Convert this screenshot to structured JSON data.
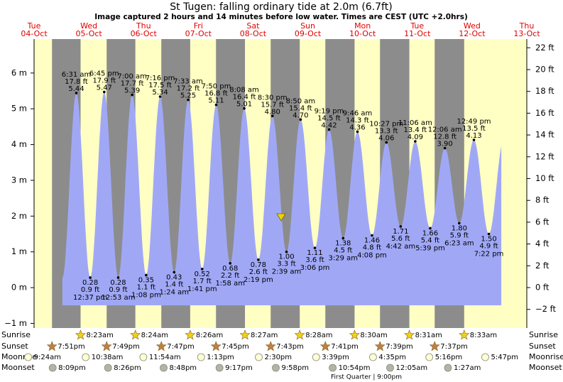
{
  "chart_data": {
    "type": "tide",
    "title": "St Tugen: falling  ordinary tide at 2.0m (6.7ft)",
    "subtitle": "Image captured 2 hours and 14 minutes before low water. Times are CEST (UTC +2.0hrs)",
    "days": [
      {
        "weekday": "Tue",
        "date": "04-Oct"
      },
      {
        "weekday": "Wed",
        "date": "05-Oct"
      },
      {
        "weekday": "Thu",
        "date": "06-Oct"
      },
      {
        "weekday": "Fri",
        "date": "07-Oct"
      },
      {
        "weekday": "Sat",
        "date": "08-Oct"
      },
      {
        "weekday": "Sun",
        "date": "09-Oct"
      },
      {
        "weekday": "Mon",
        "date": "10-Oct"
      },
      {
        "weekday": "Tue",
        "date": "11-Oct"
      },
      {
        "weekday": "Wed",
        "date": "12-Oct"
      },
      {
        "weekday": "Thu",
        "date": "13-Oct"
      }
    ],
    "ylim": [
      -1.13,
      6.95
    ],
    "yticks": [
      {
        "value": -1,
        "label": "−1 m"
      },
      {
        "value": 0,
        "label": "0 m"
      },
      {
        "value": 1,
        "label": "1 m"
      },
      {
        "value": 2,
        "label": "2 m"
      },
      {
        "value": 3,
        "label": "3 m"
      },
      {
        "value": 4,
        "label": "4 m"
      },
      {
        "value": 5,
        "label": "5 m"
      },
      {
        "value": 6,
        "label": "6 m"
      }
    ],
    "y2lim": [
      -3.71,
      22.8
    ],
    "y2ticks": [
      {
        "value": -2,
        "label": "−2 ft"
      },
      {
        "value": 0,
        "label": "0 ft"
      },
      {
        "value": 2,
        "label": "2 ft"
      },
      {
        "value": 4,
        "label": "4 ft"
      },
      {
        "value": 6,
        "label": "6 ft"
      },
      {
        "value": 8,
        "label": "8 ft"
      },
      {
        "value": 10,
        "label": "10 ft"
      },
      {
        "value": 12,
        "label": "12 ft"
      },
      {
        "value": 14,
        "label": "14 ft"
      },
      {
        "value": 16,
        "label": "16 ft"
      },
      {
        "value": 18,
        "label": "18 ft"
      },
      {
        "value": 20,
        "label": "20 ft"
      },
      {
        "value": 22,
        "label": "22 ft"
      }
    ],
    "color": "#a0a8f6",
    "extremes": [
      {
        "date": "05-Oct",
        "time": "6:31 am",
        "height": 5.44,
        "height_label": "5.44",
        "feet": "17.8 ft"
      },
      {
        "date": "05-Oct",
        "time": "12:37 pm",
        "height": 0.28,
        "height_label": "0.28",
        "feet": "0.9 ft"
      },
      {
        "date": "05-Oct",
        "time": "6:45 pm",
        "height": 5.47,
        "height_label": "5.47",
        "feet": "17.9 ft"
      },
      {
        "date": "06-Oct",
        "time": "12:53 am",
        "height": 0.28,
        "height_label": "0.28",
        "feet": "0.9 ft"
      },
      {
        "date": "06-Oct",
        "time": "7:00 am",
        "height": 5.39,
        "height_label": "5.39",
        "feet": "17.7 ft"
      },
      {
        "date": "06-Oct",
        "time": "1:08 pm",
        "height": 0.35,
        "height_label": "0.35",
        "feet": "1.1 ft"
      },
      {
        "date": "06-Oct",
        "time": "7:16 pm",
        "height": 5.34,
        "height_label": "5.34",
        "feet": "17.5 ft"
      },
      {
        "date": "07-Oct",
        "time": "1:24 am",
        "height": 0.43,
        "height_label": "0.43",
        "feet": "1.4 ft"
      },
      {
        "date": "07-Oct",
        "time": "7:33 am",
        "height": 5.25,
        "height_label": "5.25",
        "feet": "17.2 ft"
      },
      {
        "date": "07-Oct",
        "time": "1:41 pm",
        "height": 0.52,
        "height_label": "0.52",
        "feet": "1.7 ft"
      },
      {
        "date": "07-Oct",
        "time": "7:50 pm",
        "height": 5.11,
        "height_label": "5.11",
        "feet": "16.8 ft"
      },
      {
        "date": "08-Oct",
        "time": "1:58 am",
        "height": 0.68,
        "height_label": "0.68",
        "feet": "2.2 ft"
      },
      {
        "date": "08-Oct",
        "time": "8:08 am",
        "height": 5.01,
        "height_label": "5.01",
        "feet": "16.4 ft"
      },
      {
        "date": "08-Oct",
        "time": "2:19 pm",
        "height": 0.78,
        "height_label": "0.78",
        "feet": "2.6 ft"
      },
      {
        "date": "08-Oct",
        "time": "8:30 pm",
        "height": 4.8,
        "height_label": "4.80",
        "feet": "15.7 ft"
      },
      {
        "date": "09-Oct",
        "time": "2:39 am",
        "height": 1.0,
        "height_label": "1.00",
        "feet": "3.3 ft"
      },
      {
        "date": "09-Oct",
        "time": "8:50 am",
        "height": 4.7,
        "height_label": "4.70",
        "feet": "15.4 ft"
      },
      {
        "date": "09-Oct",
        "time": "3:06 pm",
        "height": 1.11,
        "height_label": "1.11",
        "feet": "3.6 ft"
      },
      {
        "date": "09-Oct",
        "time": "9:19 pm",
        "height": 4.42,
        "height_label": "4.42",
        "feet": "14.5 ft"
      },
      {
        "date": "10-Oct",
        "time": "3:29 am",
        "height": 1.38,
        "height_label": "1.38",
        "feet": "4.5 ft"
      },
      {
        "date": "10-Oct",
        "time": "9:46 am",
        "height": 4.36,
        "height_label": "4.36",
        "feet": "14.3 ft"
      },
      {
        "date": "10-Oct",
        "time": "4:08 pm",
        "height": 1.46,
        "height_label": "1.46",
        "feet": "4.8 ft"
      },
      {
        "date": "10-Oct",
        "time": "10:27 pm",
        "height": 4.06,
        "height_label": "4.06",
        "feet": "13.3 ft"
      },
      {
        "date": "11-Oct",
        "time": "4:42 am",
        "height": 1.71,
        "height_label": "1.71",
        "feet": "5.6 ft"
      },
      {
        "date": "11-Oct",
        "time": "11:06 am",
        "height": 4.09,
        "height_label": "4.09",
        "feet": "13.4 ft"
      },
      {
        "date": "11-Oct",
        "time": "5:39 pm",
        "height": 1.66,
        "height_label": "1.66",
        "feet": "5.4 ft"
      },
      {
        "date": "12-Oct",
        "time": "12:06 am",
        "height": 3.9,
        "height_label": "3.90",
        "feet": "12.8 ft"
      },
      {
        "date": "12-Oct",
        "time": "6:23 am",
        "height": 1.8,
        "height_label": "1.80",
        "feet": "5.9 ft"
      },
      {
        "date": "12-Oct",
        "time": "12:49 pm",
        "height": 4.13,
        "height_label": "4.13",
        "feet": "13.5 ft"
      },
      {
        "date": "12-Oct",
        "time": "7:22 pm",
        "height": 1.5,
        "height_label": "1.50",
        "feet": "4.9 ft"
      }
    ],
    "row_labels": {
      "sunrise": "Sunrise",
      "sunset": "Sunset",
      "moonrise": "Moonrise",
      "moonset": "Moonset"
    },
    "sunrise": [
      {
        "date": "05-Oct",
        "time": "8:23am"
      },
      {
        "date": "06-Oct",
        "time": "8:24am"
      },
      {
        "date": "07-Oct",
        "time": "8:26am"
      },
      {
        "date": "08-Oct",
        "time": "8:27am"
      },
      {
        "date": "09-Oct",
        "time": "8:28am"
      },
      {
        "date": "10-Oct",
        "time": "8:30am"
      },
      {
        "date": "11-Oct",
        "time": "8:31am"
      },
      {
        "date": "12-Oct",
        "time": "8:33am"
      }
    ],
    "sunset": [
      {
        "date": "04-Oct",
        "time": "7:51pm"
      },
      {
        "date": "05-Oct",
        "time": "7:49pm"
      },
      {
        "date": "06-Oct",
        "time": "7:47pm"
      },
      {
        "date": "07-Oct",
        "time": "7:45pm"
      },
      {
        "date": "08-Oct",
        "time": "7:43pm"
      },
      {
        "date": "09-Oct",
        "time": "7:41pm"
      },
      {
        "date": "10-Oct",
        "time": "7:39pm"
      },
      {
        "date": "11-Oct",
        "time": "7:37pm"
      }
    ],
    "moonrise": [
      {
        "date": "04-Oct",
        "time": "9:24am"
      },
      {
        "date": "05-Oct",
        "time": "10:38am"
      },
      {
        "date": "06-Oct",
        "time": "11:54am"
      },
      {
        "date": "07-Oct",
        "time": "1:13pm"
      },
      {
        "date": "08-Oct",
        "time": "2:30pm"
      },
      {
        "date": "09-Oct",
        "time": "3:39pm"
      },
      {
        "date": "10-Oct",
        "time": "4:35pm"
      },
      {
        "date": "11-Oct",
        "time": "5:16pm"
      },
      {
        "date": "12-Oct",
        "time": "5:47pm"
      }
    ],
    "moonset": [
      {
        "date": "04-Oct",
        "time": "8:09pm"
      },
      {
        "date": "05-Oct",
        "time": "8:26pm"
      },
      {
        "date": "06-Oct",
        "time": "8:48pm"
      },
      {
        "date": "07-Oct",
        "time": "9:17pm"
      },
      {
        "date": "08-Oct",
        "time": "9:58pm"
      },
      {
        "date": "09-Oct",
        "time": "10:54pm"
      },
      {
        "date": "11-Oct",
        "time": "12:05am"
      },
      {
        "date": "12-Oct",
        "time": "1:27am"
      }
    ],
    "moon_phase": "First Quarter | 9:00pm"
  }
}
